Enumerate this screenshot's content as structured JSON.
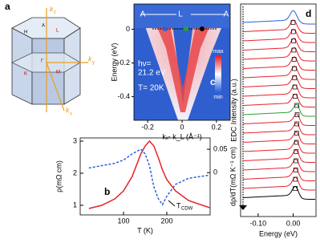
{
  "panel_a": {
    "label": "a",
    "axis_labels": [
      "k",
      "k",
      "k"
    ],
    "axis_subs": [
      "z",
      "y",
      "x"
    ],
    "points": [
      "A",
      "L",
      "H",
      "Γ",
      "K",
      "M"
    ]
  },
  "chart_data": [
    {
      "type": "line",
      "label": "b",
      "ylabel": "ρ(mΩ cm)",
      "y2label": "dρ/dT(mΩ K⁻¹ cm)",
      "xlabel": "T (K)",
      "annotation": "T",
      "annotation_sub": "CDW",
      "x": [
        20,
        50,
        80,
        100,
        120,
        140,
        150,
        160,
        170,
        180,
        190,
        200,
        220,
        250,
        300
      ],
      "series": [
        {
          "color": "#e8202a",
          "values": [
            0.9,
            1.0,
            1.2,
            1.45,
            1.9,
            2.6,
            2.85,
            3.0,
            2.85,
            2.5,
            2.1,
            1.8,
            1.45,
            1.15,
            0.92
          ]
        },
        {
          "color": "#2b5fd9",
          "axis": "y2",
          "values": [
            0.01,
            0.015,
            0.02,
            0.027,
            0.04,
            0.05,
            0.04,
            0.015,
            -0.03,
            -0.055,
            -0.068,
            -0.05,
            -0.025,
            -0.012,
            -0.005
          ]
        }
      ],
      "xlim": [
        0,
        300
      ],
      "xticks": [
        100,
        200
      ],
      "ylim": [
        0.7,
        3.1
      ],
      "yticks": [
        1,
        2,
        3
      ],
      "y2lim": [
        -0.09,
        0.074
      ],
      "y2ticks": [
        0,
        0.05
      ]
    },
    {
      "type": "image",
      "label": "c",
      "ylabel": "Energy (eV)",
      "xlabel": "kₓ- k_L (Å⁻¹)",
      "top_labels": [
        "A",
        "L",
        "A"
      ],
      "notes": [
        "hν=",
        "21.2 eV",
        "T= 20K"
      ],
      "colorbar": [
        "max",
        "min"
      ],
      "xlim": [
        -0.28,
        0.28
      ],
      "xticks": [
        -0.2,
        0,
        0.2
      ],
      "ylim": [
        -0.54,
        0.15
      ],
      "yticks": [
        0,
        -0.2,
        -0.4
      ]
    },
    {
      "type": "stack",
      "label": "d",
      "ylabel": "EDC Intensity (a.u.)",
      "xlabel": "Energy (eV)",
      "xlim": [
        -0.15,
        0.065
      ],
      "xticks": [
        {
          "value": -0.1,
          "label": "-0.10"
        },
        {
          "value": 0,
          "label": "0.00"
        }
      ]
    }
  ]
}
